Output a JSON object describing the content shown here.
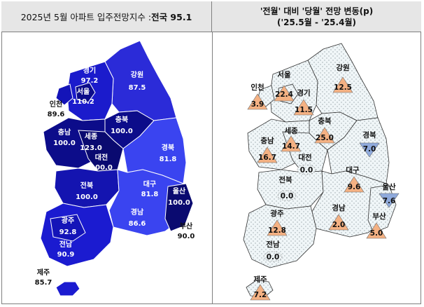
{
  "header": {
    "left_prefix": "2025년 5월 아파트 입주전망지수 : ",
    "left_bold": "전국 95.1",
    "right_line1": "'전월' 대비 '당월' 전망 변동(p)",
    "right_line2": "('25.5월 - '25.4월)"
  },
  "left_map": {
    "regions": [
      {
        "name": "경기",
        "value": "97.2"
      },
      {
        "name": "서울",
        "value": "110.2"
      },
      {
        "name": "인천",
        "value": "89.6"
      },
      {
        "name": "강원",
        "value": "87.5"
      },
      {
        "name": "충북",
        "value": "100.0"
      },
      {
        "name": "충남",
        "value": "100.0"
      },
      {
        "name": "세종",
        "value": "123.0"
      },
      {
        "name": "대전",
        "value": "100.0"
      },
      {
        "name": "경북",
        "value": "81.8"
      },
      {
        "name": "전북",
        "value": "100.0"
      },
      {
        "name": "대구",
        "value": "81.8"
      },
      {
        "name": "울산",
        "value": "100.0"
      },
      {
        "name": "경남",
        "value": "86.6"
      },
      {
        "name": "광주",
        "value": "92.8"
      },
      {
        "name": "전남",
        "value": "90.9"
      },
      {
        "name": "부산",
        "value": "90.0"
      },
      {
        "name": "제주",
        "value": "85.7"
      }
    ]
  },
  "right_map": {
    "regions": [
      {
        "name": "서울",
        "value": "22.4",
        "dir": "up"
      },
      {
        "name": "인천",
        "value": "3.9",
        "dir": "up"
      },
      {
        "name": "경기",
        "value": "11.5",
        "dir": "up"
      },
      {
        "name": "강원",
        "value": "12.5",
        "dir": "up"
      },
      {
        "name": "충남",
        "value": "16.7",
        "dir": "up"
      },
      {
        "name": "세종",
        "value": "14.7",
        "dir": "up"
      },
      {
        "name": "충북",
        "value": "25.0",
        "dir": "up"
      },
      {
        "name": "경북",
        "value": "7.0",
        "dir": "down"
      },
      {
        "name": "대전",
        "value": "0.0",
        "dir": "flat"
      },
      {
        "name": "전북",
        "value": "0.0",
        "dir": "flat"
      },
      {
        "name": "대구",
        "value": "9.6",
        "dir": "up"
      },
      {
        "name": "울산",
        "value": "7.6",
        "dir": "down"
      },
      {
        "name": "경남",
        "value": "2.0",
        "dir": "up"
      },
      {
        "name": "부산",
        "value": "5.0",
        "dir": "up"
      },
      {
        "name": "광주",
        "value": "12.8",
        "dir": "up"
      },
      {
        "name": "전남",
        "value": "0.0",
        "dir": "flat"
      },
      {
        "name": "제주",
        "value": "7.2",
        "dir": "up"
      }
    ]
  },
  "colors": {
    "up": "#f4b183",
    "down": "#8faadc",
    "flat_outline": "#888888",
    "map_dark": "#0a0a7a",
    "map_mid": "#1b1bd0",
    "map_light": "#3a44f0"
  }
}
